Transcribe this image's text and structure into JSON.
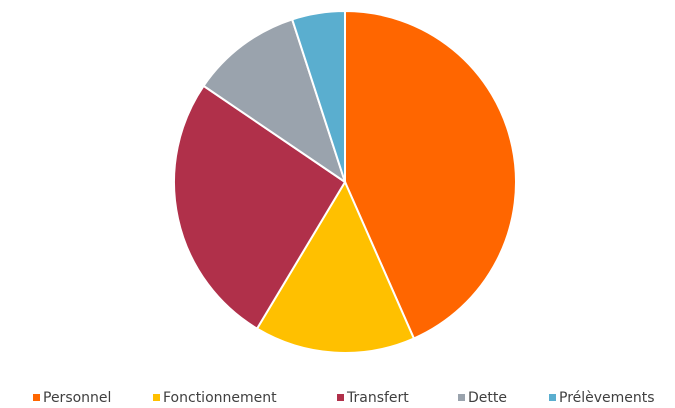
{
  "chart_data": {
    "type": "pie",
    "categories": [
      "Personnel",
      "Fonctionnement",
      "Transfert",
      "Dette",
      "Prélèvements"
    ],
    "values": [
      43.4,
      15.2,
      25.9,
      10.5,
      5.0
    ],
    "colors": [
      "#ff6600",
      "#ffc000",
      "#b0304a",
      "#9aa3ad",
      "#5aaecf"
    ],
    "legend": "bottom"
  }
}
